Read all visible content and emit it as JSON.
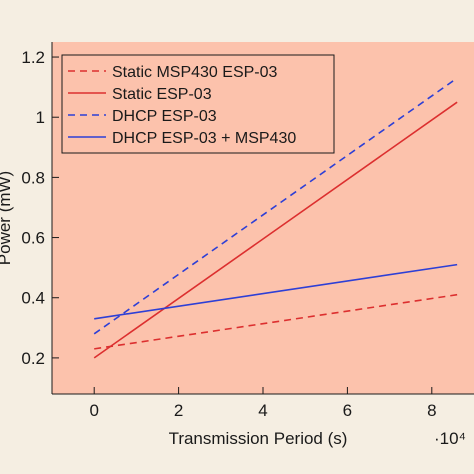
{
  "chart_data": {
    "type": "line",
    "title": "",
    "xlabel": "Transmission Period (s)",
    "x_multiplier_label": "·10⁴",
    "ylabel": "Power (mW)",
    "xlim": [
      -1,
      9
    ],
    "ylim": [
      0.08,
      1.25
    ],
    "x_ticks": [
      0,
      2,
      4,
      6,
      8
    ],
    "x_tick_labels": [
      "0",
      "2",
      "4",
      "6",
      "8"
    ],
    "y_ticks": [
      0.2,
      0.4,
      0.6,
      0.8,
      1.0,
      1.2
    ],
    "y_tick_labels": [
      "0.2",
      "0.4",
      "0.6",
      "0.8",
      "1",
      "1.2"
    ],
    "grid": false,
    "legend_position": "top-left",
    "plot_background": "#fcc2ac",
    "series": [
      {
        "name": "Static MSP430 ESP-03",
        "color": "#dc2f2f",
        "dash": "dashed",
        "x": [
          0,
          8.6
        ],
        "y": [
          0.23,
          0.41
        ]
      },
      {
        "name": "Static ESP-03",
        "color": "#dc2f2f",
        "dash": "solid",
        "x": [
          0,
          8.6
        ],
        "y": [
          0.2,
          1.05
        ]
      },
      {
        "name": "DHCP ESP-03",
        "color": "#2d3fd6",
        "dash": "dashed",
        "x": [
          0,
          8.6
        ],
        "y": [
          0.28,
          1.13
        ]
      },
      {
        "name": "DHCP ESP-03 + MSP430",
        "color": "#2d3fd6",
        "dash": "solid",
        "x": [
          0,
          8.6
        ],
        "y": [
          0.33,
          0.51
        ]
      }
    ]
  }
}
